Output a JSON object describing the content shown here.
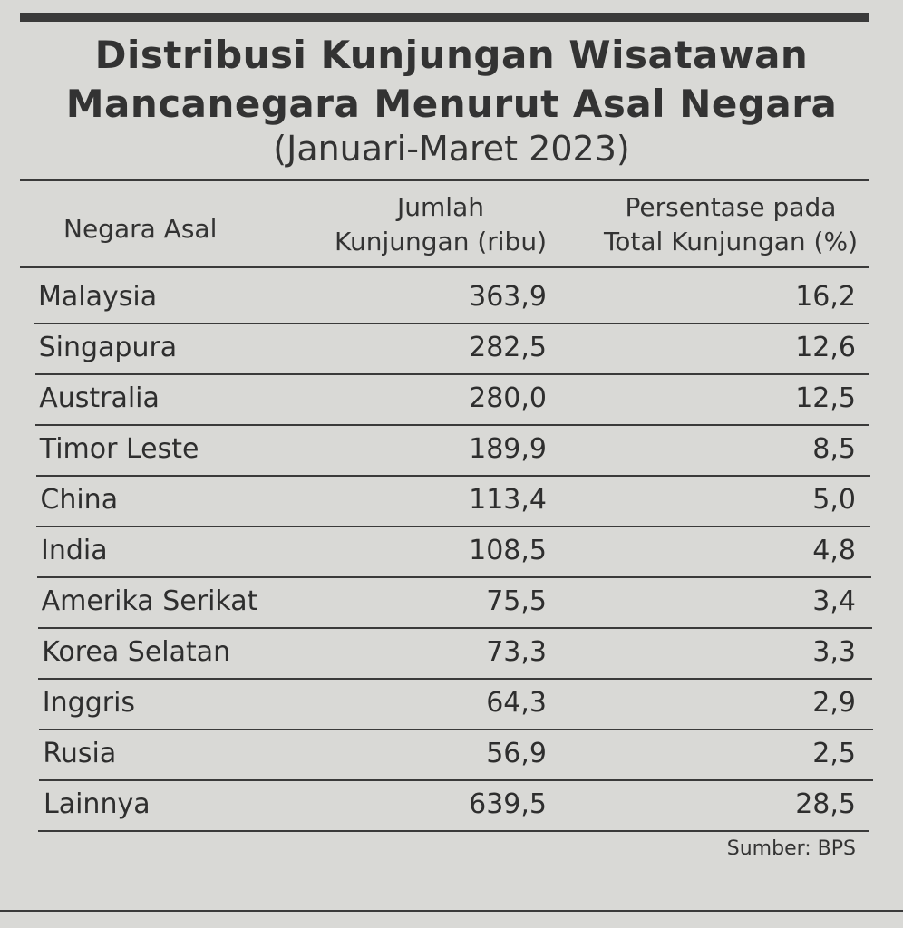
{
  "header": {
    "title": [
      "Distribusi Kunjungan Wisatawan",
      "Mancanegara Menurut Asal Negara"
    ],
    "subtitle": "(Januari-Maret 2023)"
  },
  "table": {
    "columns": [
      [
        "Negara Asal"
      ],
      [
        "Jumlah",
        "Kunjungan (ribu)"
      ],
      [
        "Persentase pada",
        "Total Kunjungan (%)"
      ]
    ],
    "rows": [
      [
        "Malaysia",
        "363,9",
        "16,2"
      ],
      [
        "Singapura",
        "282,5",
        "12,6"
      ],
      [
        "Australia",
        "280,0",
        "12,5"
      ],
      [
        "Timor Leste",
        "189,9",
        "8,5"
      ],
      [
        "China",
        "113,4",
        "5,0"
      ],
      [
        "India",
        "108,5",
        "4,8"
      ],
      [
        "Amerika Serikat",
        "75,5",
        "3,4"
      ],
      [
        "Korea Selatan",
        "73,3",
        "3,3"
      ],
      [
        "Inggris",
        "64,3",
        "2,9"
      ],
      [
        "Rusia",
        "56,9",
        "2,5"
      ],
      [
        "Lainnya",
        "639,5",
        "28,5"
      ]
    ]
  },
  "footer": {
    "source": "Sumber: BPS"
  }
}
